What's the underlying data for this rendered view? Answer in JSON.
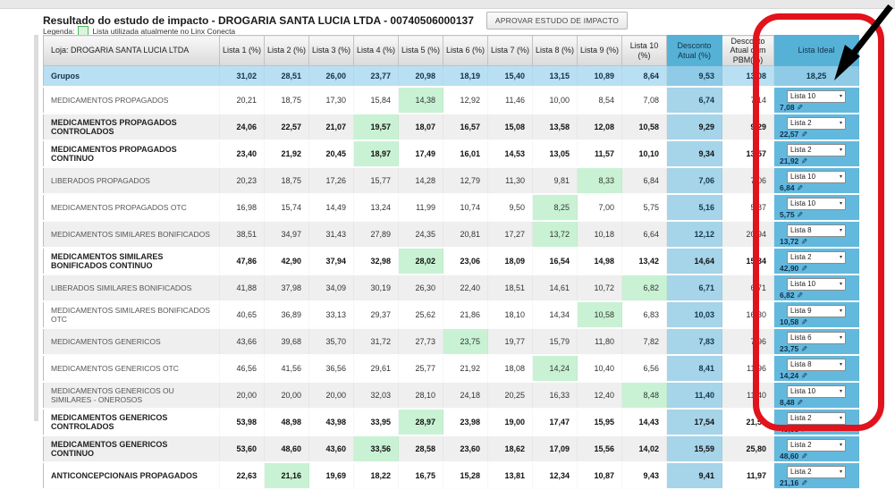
{
  "header": {
    "title": "Resultado do estudo de impacto - DROGARIA SANTA LUCIA LTDA - 00740506000137",
    "approve_button": "APROVAR ESTUDO DE IMPACTO",
    "legend_label": "Legenda:",
    "legend_text": "Lista utilizada atualmente no Linx Conecta"
  },
  "colors": {
    "header_blue": "#56b1d6",
    "desconto_cell_blue": "#a6d4e9",
    "lista_ideal_blue": "#63b9dd",
    "current_list_green": "#c9f2d4",
    "annotation_red": "#e1131c",
    "grupos_row_blue": "#b9e0f2"
  },
  "table": {
    "loja_header": "Loja: DROGARIA SANTA LUCIA LTDA",
    "list_headers": [
      "Lista 1 (%)",
      "Lista 2 (%)",
      "Lista 3 (%)",
      "Lista 4 (%)",
      "Lista 5 (%)",
      "Lista 6 (%)",
      "Lista 7 (%)",
      "Lista 8 (%)",
      "Lista 9 (%)",
      "Lista 10 (%)"
    ],
    "desconto_atual_header": "Desconto Atual (%)",
    "desconto_pbm_header": "Desconto Atual com PBM(%)",
    "lista_ideal_header": "Lista Ideal",
    "grupos_row": {
      "label": "Grupos",
      "values": [
        "31,02",
        "28,51",
        "26,00",
        "23,77",
        "20,98",
        "18,19",
        "15,40",
        "13,15",
        "10,89",
        "8,64"
      ],
      "desconto_atual": "9,53",
      "desconto_pbm": "13,08",
      "lista_ideal": "18,25"
    },
    "rows": [
      {
        "label": "MEDICAMENTOS PROPAGADOS",
        "bold": false,
        "values": [
          "20,21",
          "18,75",
          "17,30",
          "15,84",
          "14,38",
          "12,92",
          "11,46",
          "10,00",
          "8,54",
          "7,08"
        ],
        "green": 4,
        "desconto_atual": "6,74",
        "desconto_pbm": "7,14",
        "ideal_list": "Lista 10",
        "ideal_value": "7,08"
      },
      {
        "label": "MEDICAMENTOS PROPAGADOS CONTROLADOS",
        "bold": true,
        "values": [
          "24,06",
          "22,57",
          "21,07",
          "19,57",
          "18,07",
          "16,57",
          "15,08",
          "13,58",
          "12,08",
          "10,58"
        ],
        "green": 3,
        "desconto_atual": "9,29",
        "desconto_pbm": "9,29",
        "ideal_list": "Lista 2",
        "ideal_value": "22,57"
      },
      {
        "label": "MEDICAMENTOS PROPAGADOS CONTINUO",
        "bold": true,
        "values": [
          "23,40",
          "21,92",
          "20,45",
          "18,97",
          "17,49",
          "16,01",
          "14,53",
          "13,05",
          "11,57",
          "10,10"
        ],
        "green": 3,
        "desconto_atual": "9,34",
        "desconto_pbm": "13,57",
        "ideal_list": "Lista 2",
        "ideal_value": "21,92"
      },
      {
        "label": "LIBERADOS PROPAGADOS",
        "bold": false,
        "values": [
          "20,23",
          "18,75",
          "17,26",
          "15,77",
          "14,28",
          "12,79",
          "11,30",
          "9,81",
          "8,33",
          "6,84"
        ],
        "green": 8,
        "desconto_atual": "7,06",
        "desconto_pbm": "7,06",
        "ideal_list": "Lista 10",
        "ideal_value": "6,84"
      },
      {
        "label": "MEDICAMENTOS PROPAGADOS OTC",
        "bold": false,
        "values": [
          "16,98",
          "15,74",
          "14,49",
          "13,24",
          "11,99",
          "10,74",
          "9,50",
          "8,25",
          "7,00",
          "5,75"
        ],
        "green": 7,
        "desconto_atual": "5,16",
        "desconto_pbm": "5,87",
        "ideal_list": "Lista 10",
        "ideal_value": "5,75"
      },
      {
        "label": "MEDICAMENTOS SIMILARES BONIFICADOS",
        "bold": false,
        "values": [
          "38,51",
          "34,97",
          "31,43",
          "27,89",
          "24,35",
          "20,81",
          "17,27",
          "13,72",
          "10,18",
          "6,64"
        ],
        "green": 7,
        "desconto_atual": "12,12",
        "desconto_pbm": "20,94",
        "ideal_list": "Lista 8",
        "ideal_value": "13,72"
      },
      {
        "label": "MEDICAMENTOS SIMILARES BONIFICADOS CONTINUO",
        "bold": true,
        "values": [
          "47,86",
          "42,90",
          "37,94",
          "32,98",
          "28,02",
          "23,06",
          "18,09",
          "16,54",
          "14,98",
          "13,42"
        ],
        "green": 4,
        "desconto_atual": "14,64",
        "desconto_pbm": "15,34",
        "ideal_list": "Lista 2",
        "ideal_value": "42,90"
      },
      {
        "label": "LIBERADOS SIMILARES BONIFICADOS",
        "bold": false,
        "values": [
          "41,88",
          "37,98",
          "34,09",
          "30,19",
          "26,30",
          "22,40",
          "18,51",
          "14,61",
          "10,72",
          "6,82"
        ],
        "green": 9,
        "desconto_atual": "6,71",
        "desconto_pbm": "6,71",
        "ideal_list": "Lista 10",
        "ideal_value": "6,82"
      },
      {
        "label": "MEDICAMENTOS SIMILARES BONIFICADOS OTC",
        "bold": false,
        "values": [
          "40,65",
          "36,89",
          "33,13",
          "29,37",
          "25,62",
          "21,86",
          "18,10",
          "14,34",
          "10,58",
          "6,83"
        ],
        "green": 8,
        "desconto_atual": "10,03",
        "desconto_pbm": "16,30",
        "ideal_list": "Lista 9",
        "ideal_value": "10,58"
      },
      {
        "label": "MEDICAMENTOS GENERICOS",
        "bold": false,
        "values": [
          "43,66",
          "39,68",
          "35,70",
          "31,72",
          "27,73",
          "23,75",
          "19,77",
          "15,79",
          "11,80",
          "7,82"
        ],
        "green": 5,
        "desconto_atual": "7,83",
        "desconto_pbm": "7,96",
        "ideal_list": "Lista 6",
        "ideal_value": "23,75"
      },
      {
        "label": "MEDICAMENTOS GENERICOS OTC",
        "bold": false,
        "values": [
          "46,56",
          "41,56",
          "36,56",
          "29,61",
          "25,77",
          "21,92",
          "18,08",
          "14,24",
          "10,40",
          "6,56"
        ],
        "green": 7,
        "desconto_atual": "8,41",
        "desconto_pbm": "11,96",
        "ideal_list": "Lista 8",
        "ideal_value": "14,24"
      },
      {
        "label": "MEDICAMENTOS GENERICOS OU SIMILARES - ONEROSOS",
        "bold": false,
        "values": [
          "20,00",
          "20,00",
          "20,00",
          "32,03",
          "28,10",
          "24,18",
          "20,25",
          "16,33",
          "12,40",
          "8,48"
        ],
        "green": 9,
        "desconto_atual": "11,40",
        "desconto_pbm": "11,40",
        "ideal_list": "Lista 10",
        "ideal_value": "8,48"
      },
      {
        "label": "MEDICAMENTOS GENERICOS CONTROLADOS",
        "bold": true,
        "values": [
          "53,98",
          "48,98",
          "43,98",
          "33,95",
          "28,97",
          "23,98",
          "19,00",
          "17,47",
          "15,95",
          "14,43"
        ],
        "green": 4,
        "desconto_atual": "17,54",
        "desconto_pbm": "21,57",
        "ideal_list": "Lista 2",
        "ideal_value": "48,98"
      },
      {
        "label": "MEDICAMENTOS GENERICOS CONTINUO",
        "bold": true,
        "values": [
          "53,60",
          "48,60",
          "43,60",
          "33,56",
          "28,58",
          "23,60",
          "18,62",
          "17,09",
          "15,56",
          "14,02"
        ],
        "green": 3,
        "desconto_atual": "15,59",
        "desconto_pbm": "25,80",
        "ideal_list": "Lista 2",
        "ideal_value": "48,60"
      },
      {
        "label": "ANTICONCEPCIONAIS PROPAGADOS",
        "bold": true,
        "values": [
          "22,63",
          "21,16",
          "19,69",
          "18,22",
          "16,75",
          "15,28",
          "13,81",
          "12,34",
          "10,87",
          "9,43"
        ],
        "green": 1,
        "desconto_atual": "9,41",
        "desconto_pbm": "11,97",
        "ideal_list": "Lista 2",
        "ideal_value": "21,16"
      }
    ]
  },
  "icons": {
    "dropdown_caret": "chevron-down-icon",
    "edit": "edit-icon"
  }
}
